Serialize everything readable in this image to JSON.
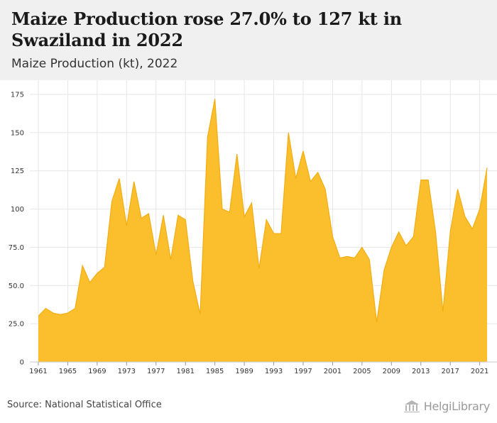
{
  "header": {
    "title": "Maize Production rose 27.0% to 127 kt in Swaziland in 2022",
    "subtitle": "Maize Production (kt), 2022"
  },
  "footer": {
    "source": "Source: National Statistical Office",
    "logo_text": "HelgiLibrary"
  },
  "colors": {
    "area_fill": "#fbbf2e",
    "area_stroke": "#f2ad10",
    "grid": "#e6e6e6",
    "header_bg": "#f0f0f0"
  },
  "chart_data": {
    "type": "area",
    "title": "Maize Production rose 27.0% to 127 kt in Swaziland in 2022",
    "subtitle": "Maize Production (kt), 2022",
    "xlabel": "",
    "ylabel": "",
    "ylim": [
      0,
      175
    ],
    "xlim": [
      1961,
      2022
    ],
    "grid": true,
    "legend": "none",
    "y_ticks": [
      "0",
      "25.0",
      "50.0",
      "75.0",
      "100",
      "125",
      "150",
      "175"
    ],
    "y_tick_values": [
      0,
      25,
      50,
      75,
      100,
      125,
      150,
      175
    ],
    "x_ticks": [
      "1961",
      "1965",
      "1969",
      "1973",
      "1977",
      "1981",
      "1985",
      "1989",
      "1993",
      "1997",
      "2001",
      "2005",
      "2009",
      "2013",
      "2017",
      "2021"
    ],
    "x": [
      1961,
      1962,
      1963,
      1964,
      1965,
      1966,
      1967,
      1968,
      1969,
      1970,
      1971,
      1972,
      1973,
      1974,
      1975,
      1976,
      1977,
      1978,
      1979,
      1980,
      1981,
      1982,
      1983,
      1984,
      1985,
      1986,
      1987,
      1988,
      1989,
      1990,
      1991,
      1992,
      1993,
      1994,
      1995,
      1996,
      1997,
      1998,
      1999,
      2000,
      2001,
      2002,
      2003,
      2004,
      2005,
      2006,
      2007,
      2008,
      2009,
      2010,
      2011,
      2012,
      2013,
      2014,
      2015,
      2016,
      2017,
      2018,
      2019,
      2020,
      2021,
      2022
    ],
    "series": [
      {
        "values": [
          30,
          35,
          32,
          31,
          32,
          35,
          63,
          52,
          58,
          62,
          105,
          120,
          89,
          118,
          94,
          97,
          70,
          96,
          67,
          96,
          93,
          53,
          31,
          147,
          172,
          100,
          98,
          136,
          95,
          104,
          61,
          93,
          84,
          84,
          150,
          120,
          138,
          118,
          124,
          113,
          82,
          68,
          69,
          68,
          75,
          67,
          26,
          60,
          75,
          85,
          76,
          82,
          119,
          119,
          85,
          33,
          85,
          113,
          95,
          87,
          100,
          127
        ]
      }
    ]
  }
}
